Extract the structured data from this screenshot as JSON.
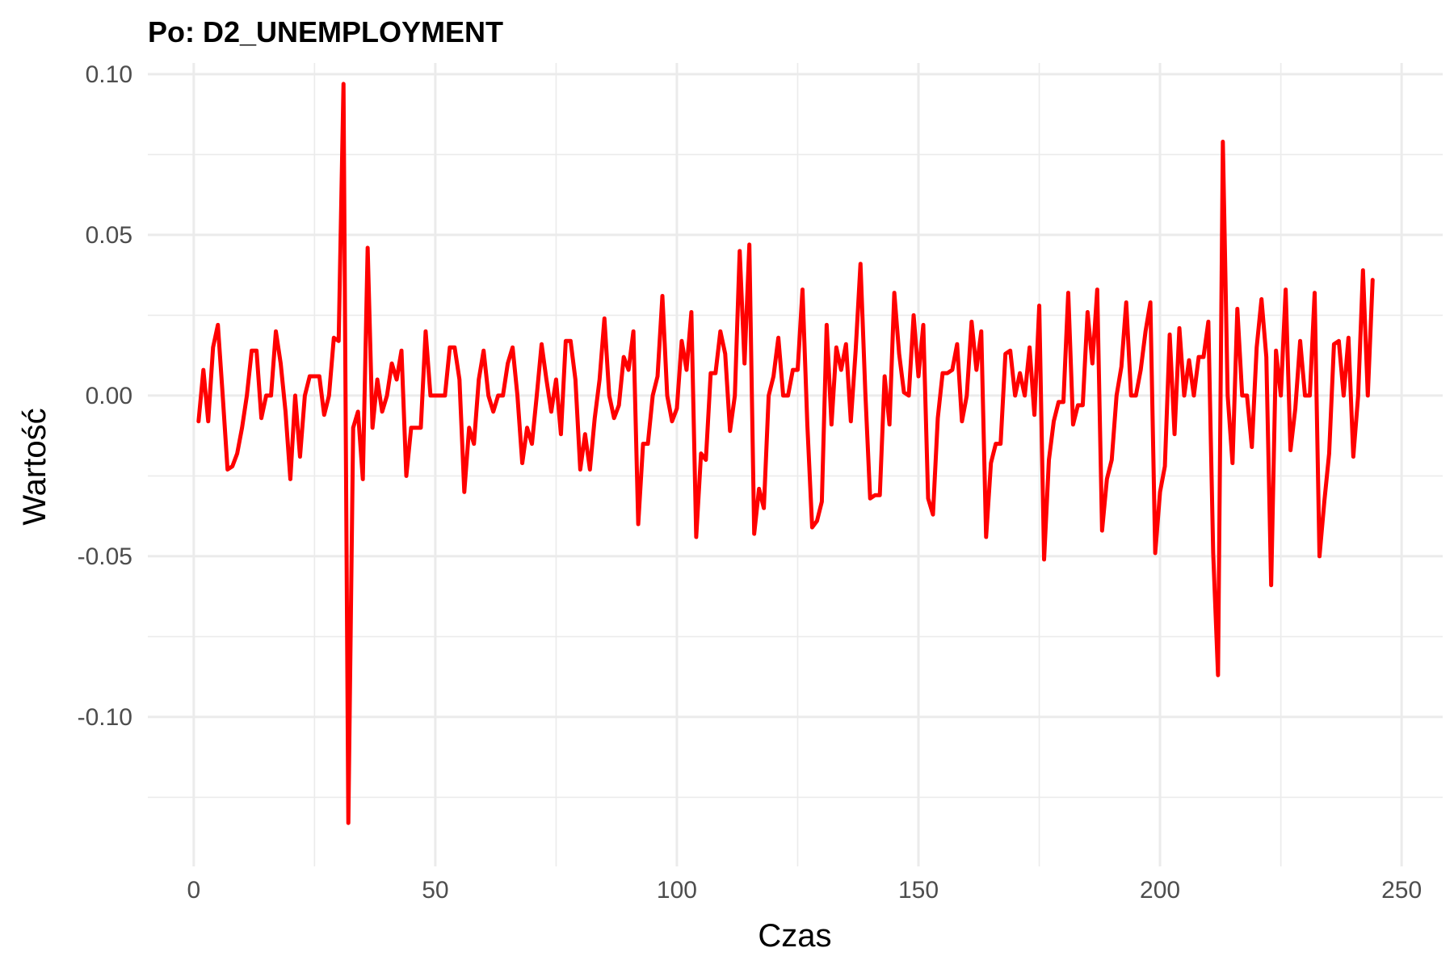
{
  "chart_data": {
    "type": "line",
    "title": "Po: D2_UNEMPLOYMENT",
    "xlabel": "Czas",
    "ylabel": "Wartość",
    "xlim": [
      -9.5,
      258.5
    ],
    "ylim": [
      -0.1465,
      0.1035
    ],
    "x_ticks": [
      0,
      50,
      100,
      150,
      200,
      250
    ],
    "x_tick_labels": [
      "0",
      "50",
      "100",
      "150",
      "200",
      "250"
    ],
    "y_ticks": [
      0.1,
      0.05,
      0.0,
      -0.05,
      -0.1
    ],
    "y_tick_labels": [
      "0.10",
      "0.05",
      "0.00",
      "-0.05",
      "-0.10"
    ],
    "grid": true,
    "legend": "none",
    "line_color": "#ff0000",
    "series": [
      {
        "x_start": 1,
        "values": [
          -0.008,
          0.008,
          -0.008,
          0.015,
          0.022,
          0.0,
          -0.023,
          -0.022,
          -0.018,
          -0.01,
          0.0,
          0.014,
          0.014,
          -0.007,
          0.0,
          0.0,
          0.02,
          0.01,
          -0.005,
          -0.026,
          0.0,
          -0.019,
          0.0,
          0.006,
          0.006,
          0.006,
          -0.006,
          0.0,
          0.018,
          0.017,
          0.097,
          -0.133,
          -0.01,
          -0.005,
          -0.026,
          0.046,
          -0.01,
          0.005,
          -0.005,
          0.0,
          0.01,
          0.005,
          0.014,
          -0.025,
          -0.01,
          -0.01,
          -0.01,
          0.02,
          0.0,
          0.0,
          0.0,
          0.0,
          0.015,
          0.015,
          0.005,
          -0.03,
          -0.01,
          -0.015,
          0.005,
          0.014,
          0.0,
          -0.005,
          0.0,
          0.0,
          0.01,
          0.015,
          0.0,
          -0.021,
          -0.01,
          -0.015,
          0.0,
          0.016,
          0.005,
          -0.005,
          0.005,
          -0.012,
          0.017,
          0.017,
          0.005,
          -0.023,
          -0.012,
          -0.023,
          -0.007,
          0.005,
          0.024,
          0.0,
          -0.007,
          -0.003,
          0.012,
          0.008,
          0.02,
          -0.04,
          -0.015,
          -0.015,
          0.0,
          0.006,
          0.031,
          0.0,
          -0.008,
          -0.004,
          0.017,
          0.008,
          0.026,
          -0.044,
          -0.018,
          -0.02,
          0.007,
          0.007,
          0.02,
          0.013,
          -0.011,
          0.0,
          0.045,
          0.01,
          0.047,
          -0.043,
          -0.029,
          -0.035,
          0.0,
          0.006,
          0.018,
          0.0,
          0.0,
          0.008,
          0.008,
          0.033,
          -0.009,
          -0.041,
          -0.039,
          -0.033,
          0.022,
          -0.009,
          0.015,
          0.008,
          0.016,
          -0.008,
          0.014,
          0.041,
          0.001,
          -0.032,
          -0.031,
          -0.031,
          0.006,
          -0.009,
          0.032,
          0.013,
          0.001,
          0.0,
          0.025,
          0.006,
          0.022,
          -0.032,
          -0.037,
          -0.007,
          0.007,
          0.007,
          0.008,
          0.016,
          -0.008,
          0.0,
          0.023,
          0.008,
          0.02,
          -0.044,
          -0.021,
          -0.015,
          -0.015,
          0.013,
          0.014,
          0.0,
          0.007,
          0.0,
          0.015,
          -0.006,
          0.028,
          -0.051,
          -0.02,
          -0.008,
          -0.002,
          -0.002,
          0.032,
          -0.009,
          -0.003,
          -0.003,
          0.026,
          0.01,
          0.033,
          -0.042,
          -0.026,
          -0.02,
          0.0,
          0.009,
          0.029,
          0.0,
          0.0,
          0.008,
          0.02,
          0.029,
          -0.049,
          -0.03,
          -0.022,
          0.019,
          -0.012,
          0.021,
          0.0,
          0.011,
          0.0,
          0.012,
          0.012,
          0.023,
          -0.049,
          -0.087,
          0.079,
          0.0,
          -0.021,
          0.027,
          0.0,
          0.0,
          -0.016,
          0.015,
          0.03,
          0.012,
          -0.059,
          0.014,
          0.0,
          0.033,
          -0.017,
          -0.004,
          0.017,
          0.0,
          0.0,
          0.032,
          -0.05,
          -0.033,
          -0.018,
          0.016,
          0.017,
          0.0,
          0.018,
          -0.019,
          0.0,
          0.039,
          0.0,
          0.036
        ]
      }
    ]
  }
}
